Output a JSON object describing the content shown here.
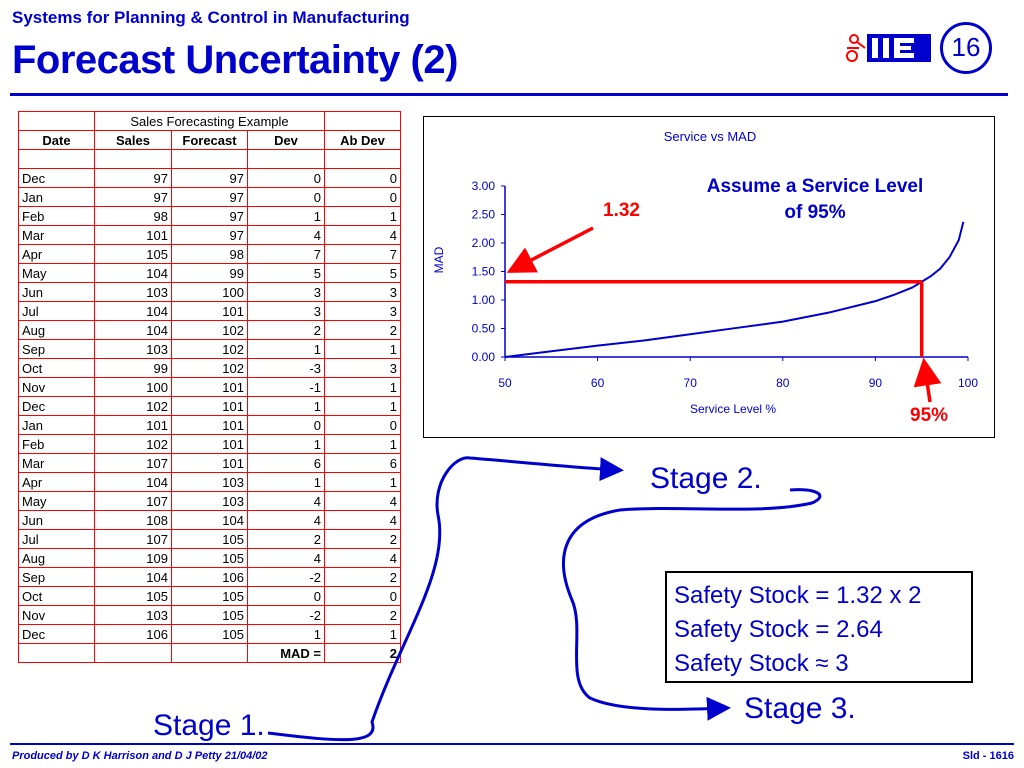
{
  "header": {
    "subtitle": "Systems for Planning & Control in Manufacturing",
    "title": "Forecast Uncertainty (2)",
    "slide_number": "16"
  },
  "footer": {
    "credit": "Produced by D K Harrison and D J Petty 21/04/02",
    "slide_ref": "Sld - 1616"
  },
  "table": {
    "caption": "Sales Forecasting Example",
    "headers": [
      "Date",
      "Sales",
      "Forecast",
      "Dev",
      "Ab Dev"
    ],
    "rows": [
      [
        "Dec",
        "97",
        "97",
        "0",
        "0"
      ],
      [
        "Jan",
        "97",
        "97",
        "0",
        "0"
      ],
      [
        "Feb",
        "98",
        "97",
        "1",
        "1"
      ],
      [
        "Mar",
        "101",
        "97",
        "4",
        "4"
      ],
      [
        "Apr",
        "105",
        "98",
        "7",
        "7"
      ],
      [
        "May",
        "104",
        "99",
        "5",
        "5"
      ],
      [
        "Jun",
        "103",
        "100",
        "3",
        "3"
      ],
      [
        "Jul",
        "104",
        "101",
        "3",
        "3"
      ],
      [
        "Aug",
        "104",
        "102",
        "2",
        "2"
      ],
      [
        "Sep",
        "103",
        "102",
        "1",
        "1"
      ],
      [
        "Oct",
        "99",
        "102",
        "-3",
        "3"
      ],
      [
        "Nov",
        "100",
        "101",
        "-1",
        "1"
      ],
      [
        "Dec",
        "102",
        "101",
        "1",
        "1"
      ],
      [
        "Jan",
        "101",
        "101",
        "0",
        "0"
      ],
      [
        "Feb",
        "102",
        "101",
        "1",
        "1"
      ],
      [
        "Mar",
        "107",
        "101",
        "6",
        "6"
      ],
      [
        "Apr",
        "104",
        "103",
        "1",
        "1"
      ],
      [
        "May",
        "107",
        "103",
        "4",
        "4"
      ],
      [
        "Jun",
        "108",
        "104",
        "4",
        "4"
      ],
      [
        "Jul",
        "107",
        "105",
        "2",
        "2"
      ],
      [
        "Aug",
        "109",
        "105",
        "4",
        "4"
      ],
      [
        "Sep",
        "104",
        "106",
        "-2",
        "2"
      ],
      [
        "Oct",
        "105",
        "105",
        "0",
        "0"
      ],
      [
        "Nov",
        "103",
        "105",
        "-2",
        "2"
      ],
      [
        "Dec",
        "106",
        "105",
        "1",
        "1"
      ]
    ],
    "mad_label": "MAD =",
    "mad_value": "2"
  },
  "chart_data": {
    "type": "line",
    "title": "Service vs MAD",
    "xlabel": "Service Level %",
    "ylabel": "MAD",
    "xlim": [
      50,
      100
    ],
    "ylim": [
      0,
      3
    ],
    "xticks": [
      "50",
      "60",
      "70",
      "80",
      "90",
      "100"
    ],
    "yticks": [
      "0.00",
      "0.50",
      "1.00",
      "1.50",
      "2.00",
      "2.50",
      "3.00"
    ],
    "grid": false,
    "line_color": "#0000cc",
    "series": [
      {
        "x": [
          50,
          55,
          60,
          65,
          70,
          75,
          80,
          85,
          90,
          92,
          94,
          95,
          96,
          97,
          98,
          99,
          99.5
        ],
        "y": [
          0.0,
          0.1,
          0.2,
          0.29,
          0.4,
          0.51,
          0.62,
          0.78,
          0.98,
          1.09,
          1.22,
          1.32,
          1.42,
          1.55,
          1.75,
          2.05,
          2.37
        ]
      }
    ],
    "annotation": {
      "mad_value": "1.32",
      "service_level": "95%",
      "note": "Assume a Service Level of 95%",
      "highlight_x": 95,
      "highlight_y": 1.32,
      "highlight_color": "#ff0000"
    }
  },
  "stages": {
    "stage1": "Stage 1.",
    "stage2": "Stage 2.",
    "stage3": "Stage 3."
  },
  "safety_stock": [
    "Safety Stock = 1.32 x 2",
    "Safety Stock = 2.64",
    "Safety Stock ≈ 3"
  ]
}
